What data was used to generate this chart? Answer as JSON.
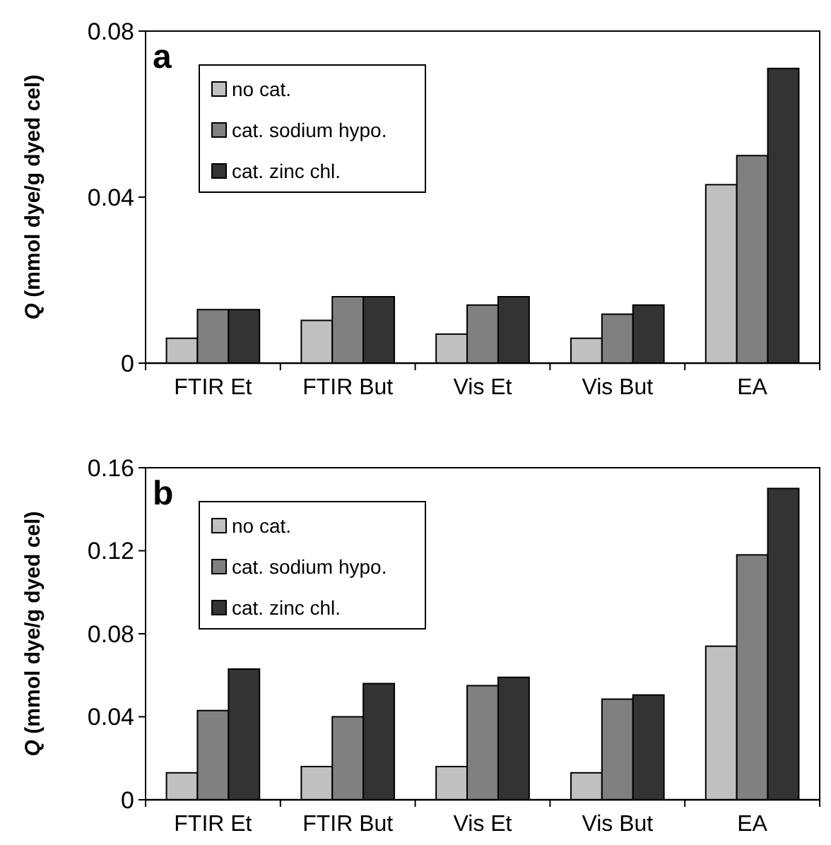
{
  "chart_data": [
    {
      "type": "bar",
      "title": "a",
      "ylabel": "Q (mmol dye/g dyed cel)",
      "categories": [
        "FTIR Et",
        "FTIR But",
        "Vis Et",
        "Vis But",
        "EA"
      ],
      "ylim": [
        0,
        0.08
      ],
      "yticks": [
        0,
        0.04,
        0.08
      ],
      "grid": false,
      "legend": "top left",
      "series": [
        {
          "name": "no cat.",
          "color": "#c0c0c0",
          "values": [
            0.006,
            0.0103,
            0.007,
            0.006,
            0.043
          ]
        },
        {
          "name": "cat. sodium hypo.",
          "color": "#808080",
          "values": [
            0.0129,
            0.016,
            0.014,
            0.0118,
            0.05
          ]
        },
        {
          "name": "cat. zinc chl.",
          "color": "#333333",
          "values": [
            0.0129,
            0.016,
            0.016,
            0.014,
            0.071
          ]
        }
      ]
    },
    {
      "type": "bar",
      "title": "b",
      "ylabel": "Q (mmol dye/g dyed cel)",
      "categories": [
        "FTIR Et",
        "FTIR But",
        "Vis Et",
        "Vis But",
        "EA"
      ],
      "ylim": [
        0,
        0.16
      ],
      "yticks": [
        0,
        0.04,
        0.08,
        0.12,
        0.16
      ],
      "grid": false,
      "legend": "top left",
      "series": [
        {
          "name": "no cat.",
          "color": "#c0c0c0",
          "values": [
            0.013,
            0.016,
            0.016,
            0.013,
            0.074
          ]
        },
        {
          "name": "cat. sodium hypo.",
          "color": "#808080",
          "values": [
            0.043,
            0.04,
            0.055,
            0.0485,
            0.118
          ]
        },
        {
          "name": "cat. zinc chl.",
          "color": "#333333",
          "values": [
            0.063,
            0.056,
            0.059,
            0.0505,
            0.15
          ]
        }
      ]
    }
  ]
}
